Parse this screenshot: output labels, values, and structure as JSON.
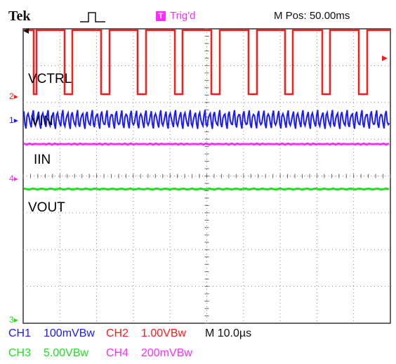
{
  "header": {
    "brand": "Tek",
    "trigger_badge": "T",
    "trigger_status": "Trig'd",
    "position_readout": "M Pos: 50.00ms"
  },
  "traces": {
    "vctrl": {
      "label": "VCTRL",
      "color": "#ff1a1a"
    },
    "vin": {
      "label": "VIN",
      "color": "#1a1aff"
    },
    "iin": {
      "label": "IIN",
      "color": "#ff2cff"
    },
    "vout": {
      "label": "VOUT",
      "color": "#22dd22"
    }
  },
  "markers": {
    "ch1": "1",
    "ch2": "2",
    "ch3": "3",
    "ch4": "4"
  },
  "footer": {
    "ch1": {
      "name": "CH1",
      "scale": "100mVBᴡ"
    },
    "ch2": {
      "name": "CH2",
      "scale": "1.00VBᴡ"
    },
    "timebase": "M 10.0µs",
    "ch3": {
      "name": "CH3",
      "scale": "5.00VBᴡ"
    },
    "ch4": {
      "name": "CH4",
      "scale": "200mVBᴡ"
    }
  }
}
